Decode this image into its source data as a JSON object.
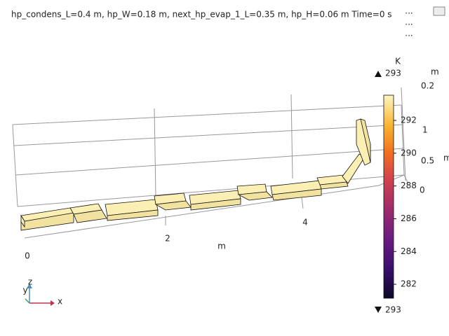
{
  "title": "hp_condens_L=0.4 m, hp_W=0.18 m, next_hp_evap_1_L=0.35 m, hp_H=0.06 m Time=0 s",
  "menu": [
    "...",
    "...",
    "..."
  ],
  "x_axis": {
    "ticks": [
      "0",
      "2",
      "4"
    ],
    "unit": "m"
  },
  "y_axis": {
    "ticks": [
      "0.2"
    ],
    "unit": "m"
  },
  "z_axis": {
    "ticks": [
      "1",
      "0.5",
      "0"
    ],
    "unit": "m"
  },
  "colorbar": {
    "unit": "K",
    "lim": [
      281.15,
      293.54
    ],
    "ticks": [
      282,
      284,
      286,
      288,
      290,
      292
    ],
    "max_label": "293",
    "min_label": "293"
  },
  "triad": {
    "z": "z",
    "y": "y",
    "x": "x"
  }
}
